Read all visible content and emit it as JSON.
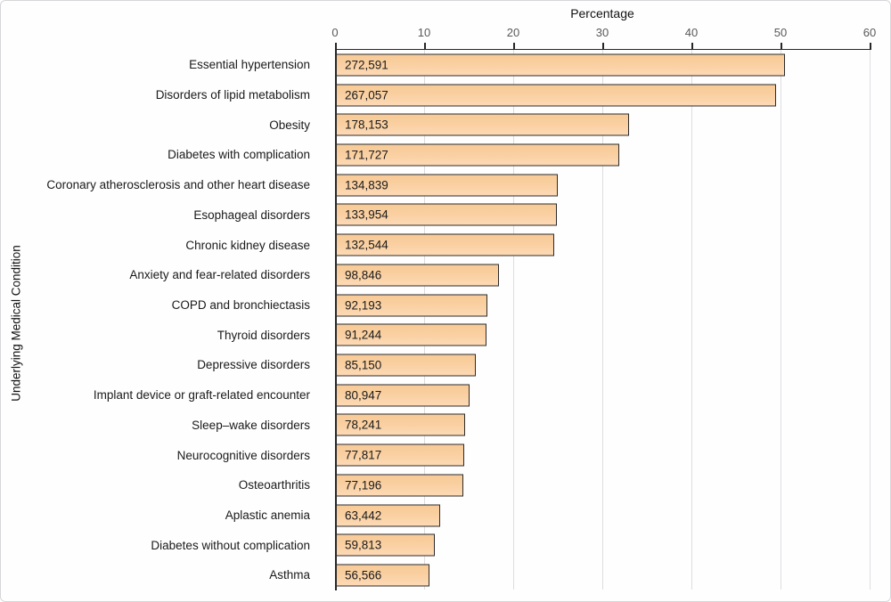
{
  "chart_data": {
    "type": "bar",
    "orientation": "horizontal",
    "title": "",
    "xlabel": "Percentage",
    "ylabel": "Underlying Medical Condition",
    "xlim": [
      0,
      60
    ],
    "xticks": [
      0,
      10,
      20,
      30,
      40,
      50,
      60
    ],
    "grid": true,
    "legend": "none",
    "categories": [
      "Essential hypertension",
      "Disorders of lipid metabolism",
      "Obesity",
      "Diabetes with complication",
      "Coronary atherosclerosis and other heart disease",
      "Esophageal disorders",
      "Chronic kidney disease",
      "Anxiety and fear-related disorders",
      "COPD and bronchiectasis",
      "Thyroid disorders",
      "Depressive disorders",
      "Implant device or graft-related encounter",
      "Sleep–wake disorders",
      "Neurocognitive disorders",
      "Osteoarthritis",
      "Aplastic anemia",
      "Diabetes without complication",
      "Asthma"
    ],
    "values": [
      50.4,
      49.4,
      32.9,
      31.8,
      24.9,
      24.8,
      24.5,
      18.3,
      17.0,
      16.9,
      15.7,
      15.0,
      14.5,
      14.4,
      14.3,
      11.7,
      11.1,
      10.5
    ],
    "counts": [
      272591,
      267057,
      178153,
      171727,
      134839,
      133954,
      132544,
      98846,
      92193,
      91244,
      85150,
      80947,
      78241,
      77817,
      77196,
      63442,
      59813,
      56566
    ],
    "count_labels": [
      "272,591",
      "267,057",
      "178,153",
      "171,727",
      "134,839",
      "133,954",
      "132,544",
      "98,846",
      "92,193",
      "91,244",
      "85,150",
      "80,947",
      "78,241",
      "77,817",
      "77,196",
      "63,442",
      "59,813",
      "56,566"
    ],
    "colors": {
      "bar_fill": "#FAD1A4",
      "bar_border": "#2B2B2B",
      "axis_line": "#262626",
      "gridline": "#DDDDE1",
      "tick_label": "#595959",
      "text": "#1A1A1A",
      "frame_border": "#D6D6DA",
      "background": "#FFFEFE"
    }
  }
}
